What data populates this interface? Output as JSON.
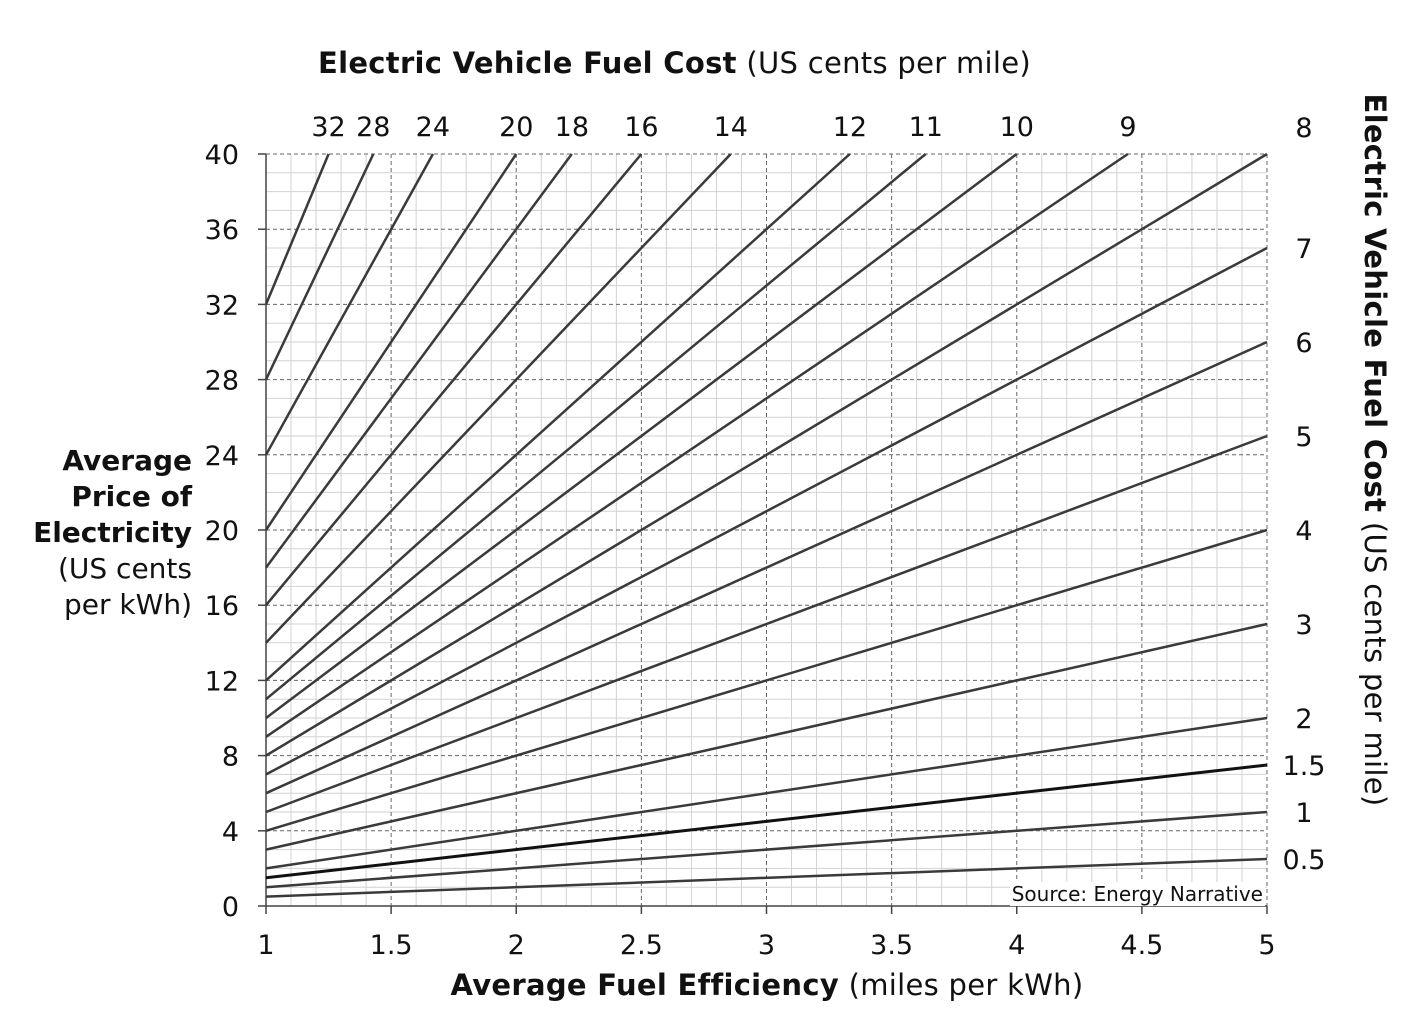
{
  "chart_data": {
    "type": "line",
    "title_bold": "Electric Vehicle Fuel Cost",
    "title_rest": "(US cents per mile)",
    "right_title_bold": "Electric Vehicle Fuel Cost",
    "right_title_rest": "(US cents per mile)",
    "xlabel_bold": "Average Fuel Efficiency",
    "xlabel_rest": "(miles per kWh)",
    "ylabel_lines": [
      "Average",
      "Price of",
      "Electricity",
      "(US cents",
      "per kWh)"
    ],
    "xlim": [
      1,
      5
    ],
    "ylim": [
      0,
      40
    ],
    "x_ticks": [
      "1",
      "1.5",
      "2",
      "2.5",
      "3",
      "3.5",
      "4",
      "4.5",
      "5"
    ],
    "y_ticks": [
      "0",
      "4",
      "8",
      "12",
      "16",
      "20",
      "24",
      "28",
      "32",
      "36",
      "40"
    ],
    "grid": true,
    "source": "Source: Energy Narrative",
    "series": [
      {
        "name": "0.5",
        "cost": 0.5,
        "x": [
          1,
          5
        ],
        "y": [
          0.5,
          2.5
        ]
      },
      {
        "name": "1",
        "cost": 1,
        "x": [
          1,
          5
        ],
        "y": [
          1,
          5
        ]
      },
      {
        "name": "1.5",
        "cost": 1.5,
        "x": [
          1,
          5
        ],
        "y": [
          1.5,
          7.5
        ]
      },
      {
        "name": "2",
        "cost": 2,
        "x": [
          1,
          5
        ],
        "y": [
          2,
          10
        ]
      },
      {
        "name": "3",
        "cost": 3,
        "x": [
          1,
          5
        ],
        "y": [
          3,
          15
        ]
      },
      {
        "name": "4",
        "cost": 4,
        "x": [
          1,
          5
        ],
        "y": [
          4,
          20
        ]
      },
      {
        "name": "5",
        "cost": 5,
        "x": [
          1,
          5
        ],
        "y": [
          5,
          25
        ]
      },
      {
        "name": "6",
        "cost": 6,
        "x": [
          1,
          5
        ],
        "y": [
          6,
          30
        ]
      },
      {
        "name": "7",
        "cost": 7,
        "x": [
          1,
          5
        ],
        "y": [
          7,
          35
        ]
      },
      {
        "name": "8",
        "cost": 8,
        "x": [
          1,
          5
        ],
        "y": [
          8,
          40
        ]
      },
      {
        "name": "9",
        "cost": 9,
        "x": [
          1,
          4.444
        ],
        "y": [
          9,
          40
        ]
      },
      {
        "name": "10",
        "cost": 10,
        "x": [
          1,
          4
        ],
        "y": [
          10,
          40
        ]
      },
      {
        "name": "11",
        "cost": 11,
        "x": [
          1,
          3.636
        ],
        "y": [
          11,
          40
        ]
      },
      {
        "name": "12",
        "cost": 12,
        "x": [
          1,
          3.333
        ],
        "y": [
          12,
          40
        ]
      },
      {
        "name": "14",
        "cost": 14,
        "x": [
          1,
          2.857
        ],
        "y": [
          14,
          40
        ]
      },
      {
        "name": "16",
        "cost": 16,
        "x": [
          1,
          2.5
        ],
        "y": [
          16,
          40
        ]
      },
      {
        "name": "18",
        "cost": 18,
        "x": [
          1,
          2.222
        ],
        "y": [
          18,
          40
        ]
      },
      {
        "name": "20",
        "cost": 20,
        "x": [
          1,
          2
        ],
        "y": [
          20,
          40
        ]
      },
      {
        "name": "24",
        "cost": 24,
        "x": [
          1,
          1.667
        ],
        "y": [
          24,
          40
        ]
      },
      {
        "name": "28",
        "cost": 28,
        "x": [
          1,
          1.429
        ],
        "y": [
          28,
          40
        ]
      },
      {
        "name": "32",
        "cost": 32,
        "x": [
          1,
          1.25
        ],
        "y": [
          32,
          40
        ]
      }
    ],
    "top_labels": [
      "32",
      "28",
      "24",
      "20",
      "18",
      "16",
      "14",
      "12",
      "11",
      "10",
      "9"
    ],
    "right_labels": [
      "8",
      "7",
      "6",
      "5",
      "4",
      "3",
      "2",
      "1.5",
      "1",
      "0.5"
    ]
  }
}
